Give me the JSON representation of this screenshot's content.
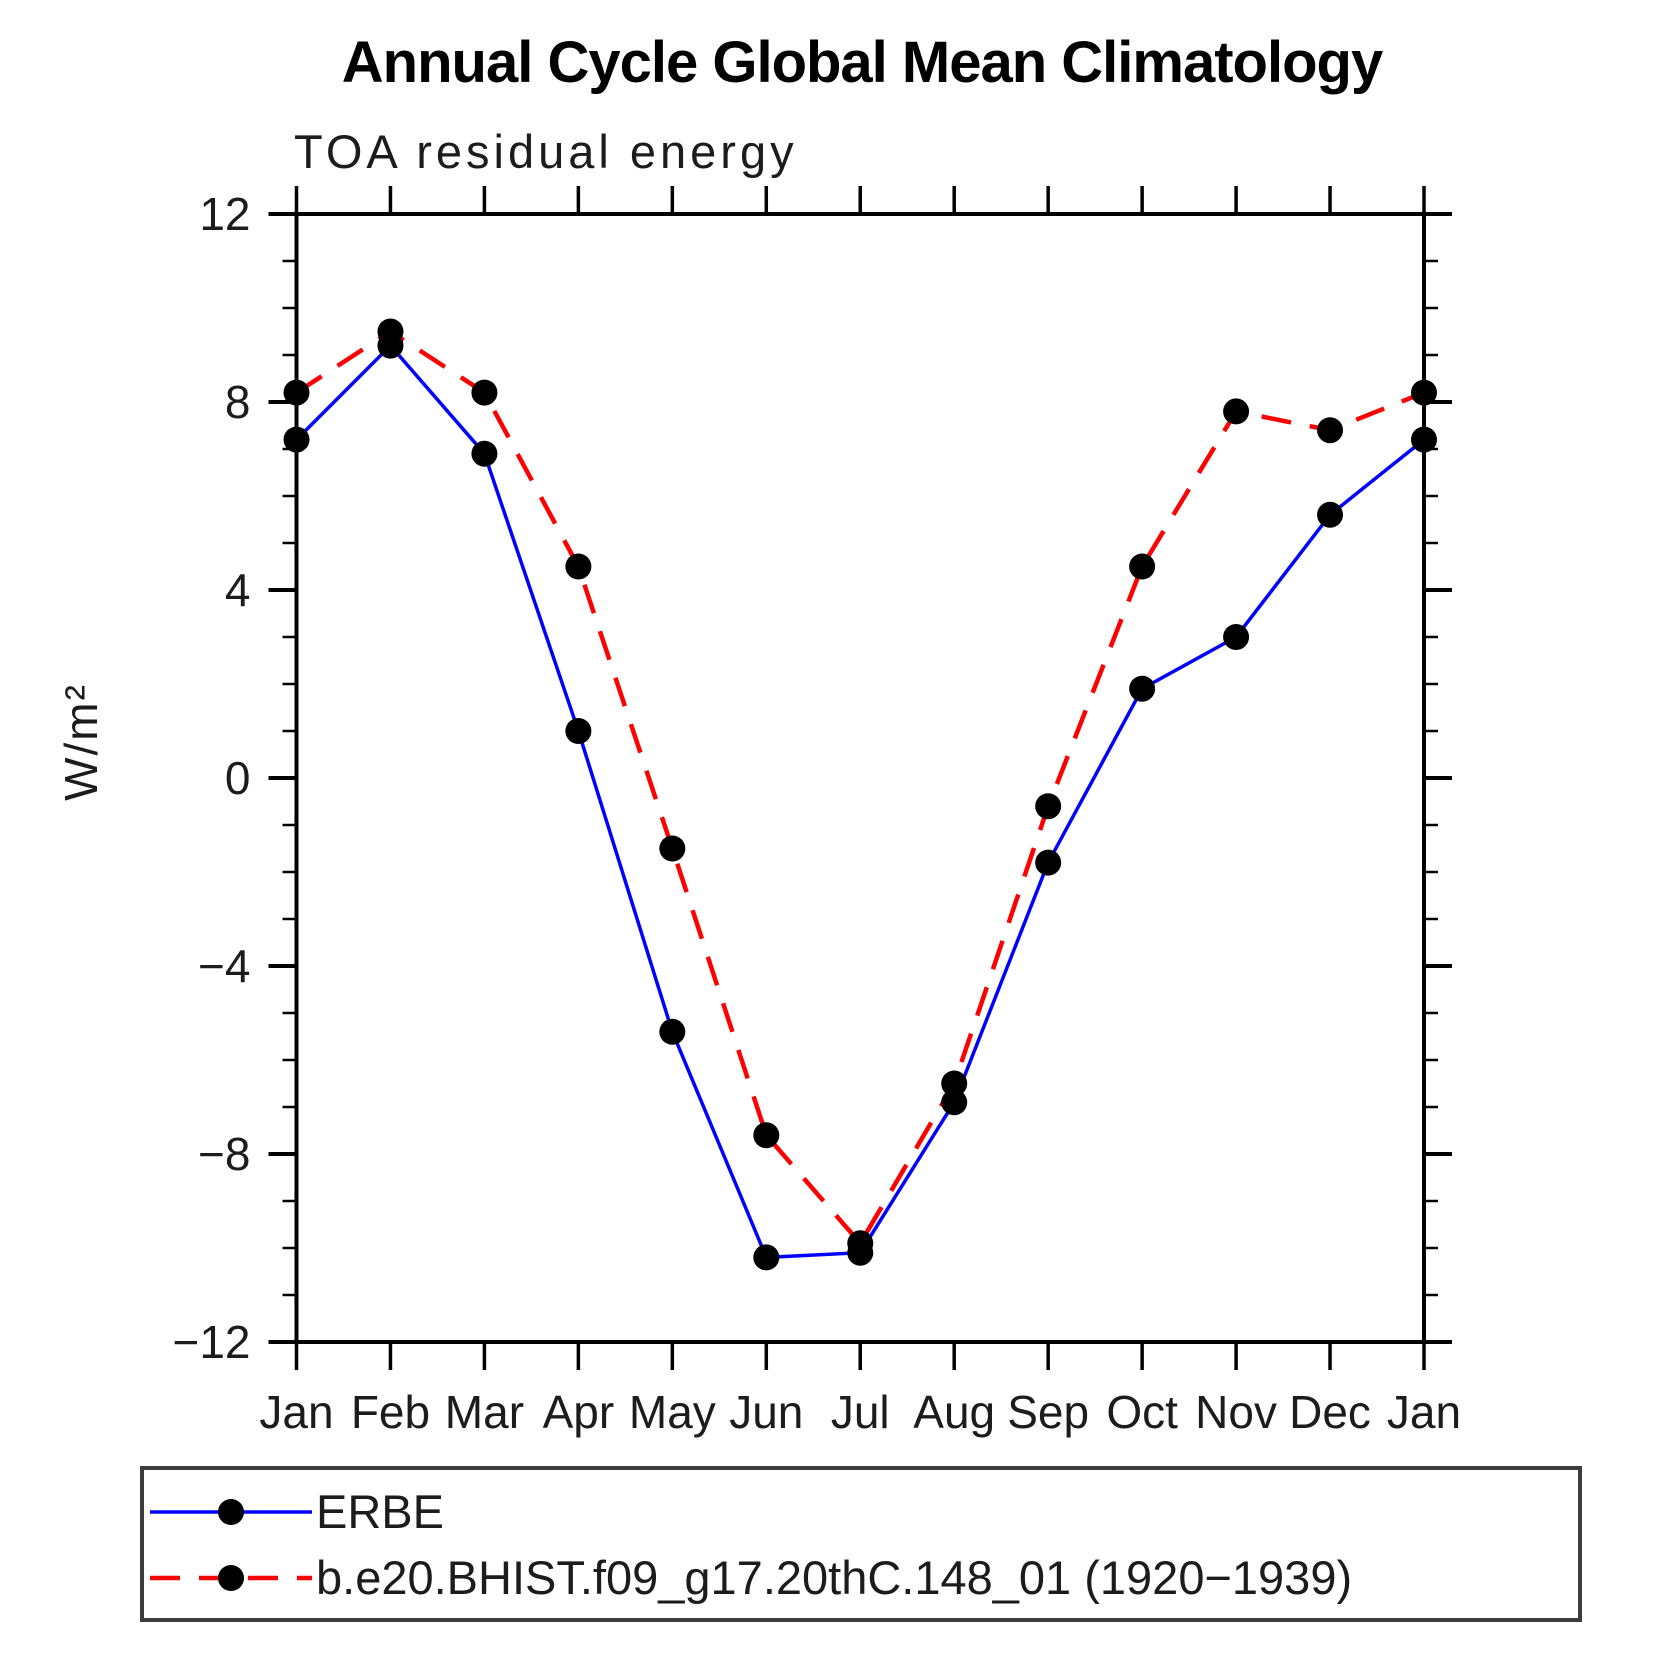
{
  "title": "Annual Cycle Global Mean Climatology",
  "subtitle": "TOA residual energy",
  "y_axis": {
    "label": "W/m²",
    "tick_values": [
      12,
      8,
      4,
      0,
      -4,
      -8,
      -12
    ],
    "tick_labels": [
      "12",
      "8",
      "4",
      "0",
      "−4",
      "−8",
      "−12"
    ],
    "minor_step": 1,
    "min": -12,
    "max": 12
  },
  "x_axis": {
    "tick_labels": [
      "Jan",
      "Feb",
      "Mar",
      "Apr",
      "May",
      "Jun",
      "Jul",
      "Aug",
      "Sep",
      "Oct",
      "Nov",
      "Dec",
      "Jan"
    ]
  },
  "legend": {
    "entries": [
      {
        "label": "ERBE",
        "color": "#0000ff",
        "line_style": "solid"
      },
      {
        "label": "b.e20.BHIST.f09_g17.20thC.148_01 (1920−1939)",
        "color": "#ff0000",
        "line_style": "dashed"
      }
    ]
  },
  "chart_data": {
    "type": "line",
    "title": "Annual Cycle Global Mean Climatology",
    "subtitle": "TOA residual energy",
    "ylabel": "W/m²",
    "ylim": [
      -12,
      12
    ],
    "grid": false,
    "legend_position": "bottom",
    "categories": [
      "Jan",
      "Feb",
      "Mar",
      "Apr",
      "May",
      "Jun",
      "Jul",
      "Aug",
      "Sep",
      "Oct",
      "Nov",
      "Dec",
      "Jan"
    ],
    "marker": {
      "shape": "circle",
      "color": "#000000",
      "radius_px": 13
    },
    "series": [
      {
        "name": "ERBE",
        "color": "#0000ff",
        "line_style": "solid",
        "values": [
          7.2,
          9.2,
          6.9,
          1.0,
          -5.4,
          -10.2,
          -10.1,
          -6.9,
          -1.8,
          1.9,
          3.0,
          5.6,
          7.2
        ]
      },
      {
        "name": "b.e20.BHIST.f09_g17.20thC.148_01 (1920−1939)",
        "color": "#ff0000",
        "line_style": "dashed",
        "values": [
          8.2,
          9.5,
          8.2,
          4.5,
          -1.5,
          -7.6,
          -9.9,
          -6.5,
          -0.6,
          4.5,
          7.8,
          7.4,
          8.2
        ]
      }
    ]
  }
}
